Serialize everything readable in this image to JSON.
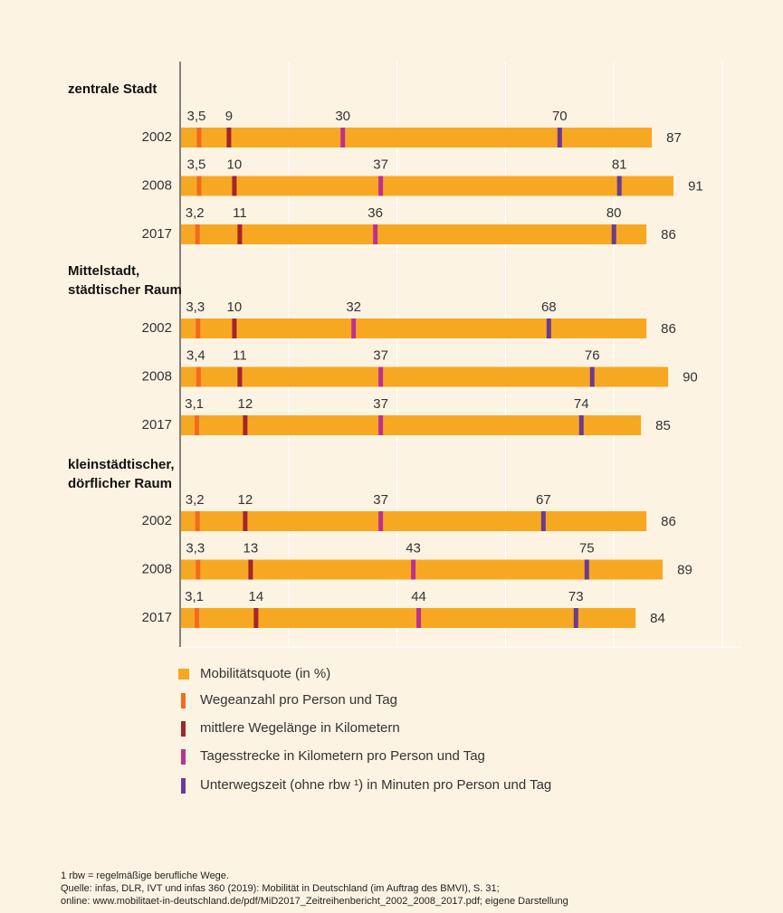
{
  "chart_data": {
    "type": "bar",
    "groups": [
      {
        "name": [
          "zentrale Stadt"
        ],
        "categories": [
          "2002",
          "2008",
          "2017"
        ]
      },
      {
        "name": [
          "Mittelstadt,",
          "städtischer Raum"
        ],
        "categories": [
          "2002",
          "2008",
          "2017"
        ]
      },
      {
        "name": [
          "kleinstädtischer,",
          "dörflicher Raum"
        ],
        "categories": [
          "2002",
          "2008",
          "2017"
        ]
      }
    ],
    "xlim": [
      0,
      100
    ],
    "xticks": [
      0,
      20,
      40,
      60,
      80,
      100
    ],
    "grid": true,
    "series": [
      {
        "name": "Mobilitätsquote (in %)",
        "color": "#f7a823",
        "values": [
          87,
          91,
          86,
          86,
          90,
          85,
          86,
          89,
          84
        ]
      },
      {
        "name": "Wegeanzahl pro Person und Tag",
        "color": "#f26a21",
        "values": [
          3.5,
          3.5,
          3.2,
          3.3,
          3.4,
          3.1,
          3.2,
          3.3,
          3.1
        ],
        "value_labels": [
          "3,5",
          "3,5",
          "3,2",
          "3,3",
          "3,4",
          "3,1",
          "3,2",
          "3,3",
          "3,1"
        ]
      },
      {
        "name": "mittlere Wegelänge in Kilometern",
        "color": "#a3262d",
        "values": [
          9,
          10,
          11,
          10,
          11,
          12,
          12,
          13,
          14
        ]
      },
      {
        "name": "Tagesstrecke in Kilometern pro Person und Tag",
        "color": "#c0308e",
        "values": [
          30,
          37,
          36,
          32,
          37,
          37,
          37,
          43,
          44
        ]
      },
      {
        "name": "Unterwegszeit (ohne rbw ¹) in Minuten pro Person und Tag",
        "color": "#6b3b90",
        "values": [
          70,
          81,
          80,
          68,
          76,
          74,
          67,
          75,
          73
        ]
      }
    ]
  },
  "footnotes": [
    "1    rbw = regelmäßige berufliche Wege.",
    "Quelle: infas, DLR, IVT und infas 360 (2019): Mobilität in Deutschland (im Auftrag des BMVI), S. 31;",
    "online: www.mobilitaet-in-deutschland.de/pdf/MiD2017_Zeitreihenbericht_2002_2008_2017.pdf; eigene Darstellung"
  ]
}
